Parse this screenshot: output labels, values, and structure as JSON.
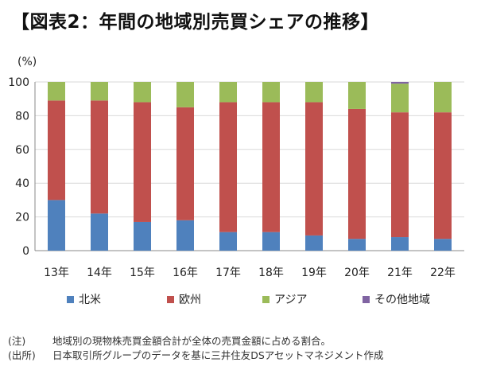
{
  "title": "【図表2：年間の地域別売買シェアの推移】",
  "unit_label": "(%)",
  "chart_data": {
    "type": "bar",
    "stacked": true,
    "categories": [
      "13年",
      "14年",
      "15年",
      "16年",
      "17年",
      "18年",
      "19年",
      "20年",
      "21年",
      "22年"
    ],
    "series": [
      {
        "name": "北米",
        "color": "#4f81bd",
        "values": [
          30,
          22,
          17,
          18,
          11,
          11,
          9,
          7,
          8,
          7
        ]
      },
      {
        "name": "欧州",
        "color": "#c0504d",
        "values": [
          59,
          67,
          71,
          67,
          77,
          77,
          79,
          77,
          74,
          75
        ]
      },
      {
        "name": "アジア",
        "color": "#9bbb59",
        "values": [
          11,
          11,
          12,
          15,
          12,
          12,
          12,
          16,
          17,
          18
        ]
      },
      {
        "name": "その他地域",
        "color": "#8064a2",
        "values": [
          0,
          0,
          0,
          0,
          0,
          0,
          0,
          0,
          1,
          0
        ]
      }
    ],
    "ylim": [
      0,
      100
    ],
    "yticks": [
      0,
      20,
      40,
      60,
      80,
      100
    ],
    "ylabel": "(%)",
    "xlabel": "",
    "grid": true,
    "legend_position": "bottom"
  },
  "notes": [
    {
      "label": "(注)",
      "text": "地域別の現物株売買金額合計が全体の売買金額に占める割合。"
    },
    {
      "label": "(出所)",
      "text": "日本取引所グループのデータを基に三井住友DSアセットマネジメント作成"
    }
  ]
}
